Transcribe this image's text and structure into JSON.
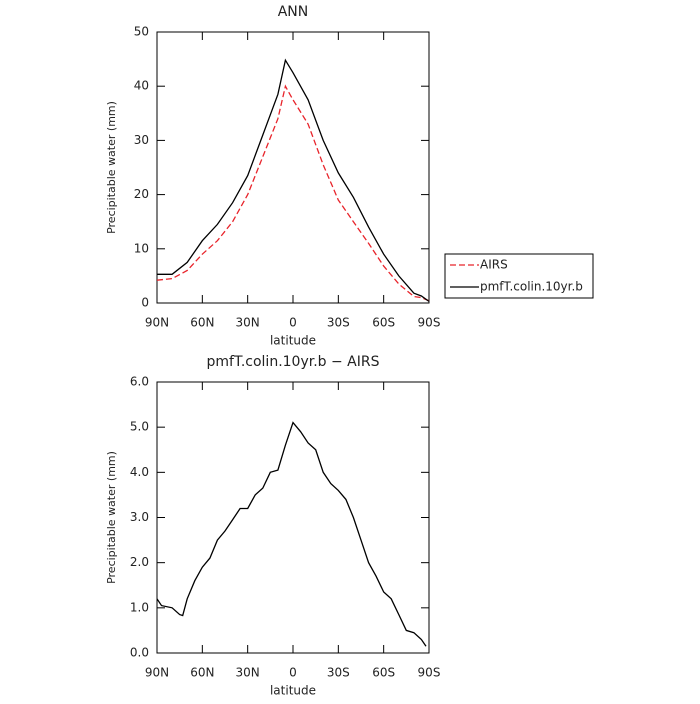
{
  "chart_data": [
    {
      "type": "line",
      "title": "ANN",
      "x_label": "latitude",
      "y_label": "Precipitable water (mm)",
      "x": [
        90,
        80,
        70,
        60,
        50,
        40,
        30,
        20,
        10,
        5,
        0,
        -10,
        -20,
        -30,
        -40,
        -50,
        -60,
        -70,
        -80,
        -85,
        -90
      ],
      "series": [
        {
          "name": "AIRS",
          "color": "#e8242b",
          "dash": true,
          "values": [
            4.2,
            4.5,
            6,
            9,
            11.5,
            15,
            20,
            27,
            34,
            40,
            37.5,
            33,
            25.5,
            19,
            15,
            11,
            6.8,
            3.5,
            1.2,
            1,
            0.4
          ]
        },
        {
          "name": "pmfT.colin.10yr.b",
          "color": "#000000",
          "dash": false,
          "values": [
            5.3,
            5.3,
            7.5,
            11.5,
            14.5,
            18.5,
            23.5,
            31,
            38.5,
            44.8,
            42.5,
            37.5,
            30,
            24,
            19.5,
            14,
            9,
            5,
            1.8,
            1.3,
            0.3
          ]
        }
      ],
      "xlim": [
        90,
        -90
      ],
      "xticks": [
        {
          "value": 90,
          "label": "90N"
        },
        {
          "value": 60,
          "label": "60N"
        },
        {
          "value": 30,
          "label": "30N"
        },
        0,
        {
          "value": -30,
          "label": "30S"
        },
        {
          "value": -60,
          "label": "60S"
        },
        {
          "value": -90,
          "label": "90S"
        }
      ],
      "ylim": [
        0,
        50
      ],
      "yticks": [
        0,
        10,
        20,
        30,
        40,
        50
      ],
      "legend": "right"
    },
    {
      "type": "line",
      "title": "pmfT.colin.10yr.b  −  AIRS",
      "x_label": "latitude",
      "y_label": "Precipitable water (mm)",
      "x": [
        90,
        87,
        80,
        75,
        73,
        70,
        65,
        60,
        55,
        50,
        45,
        40,
        35,
        30,
        25,
        20,
        15,
        10,
        5,
        0,
        -5,
        -10,
        -15,
        -20,
        -25,
        -30,
        -35,
        -40,
        -45,
        -50,
        -55,
        -60,
        -65,
        -70,
        -75,
        -80,
        -85,
        -88
      ],
      "series": [
        {
          "color": "#000000",
          "dash": false,
          "values": [
            1.2,
            1.05,
            1.0,
            0.85,
            0.83,
            1.2,
            1.6,
            1.9,
            2.1,
            2.5,
            2.7,
            2.95,
            3.2,
            3.2,
            3.5,
            3.65,
            4.0,
            4.05,
            4.6,
            5.1,
            4.9,
            4.65,
            4.5,
            4.0,
            3.75,
            3.6,
            3.4,
            3.0,
            2.5,
            2.0,
            1.7,
            1.35,
            1.2,
            0.85,
            0.5,
            0.45,
            0.3,
            0.15
          ]
        }
      ],
      "xlim": [
        90,
        -90
      ],
      "xticks": [
        {
          "value": 90,
          "label": "90N"
        },
        {
          "value": 60,
          "label": "60N"
        },
        {
          "value": 30,
          "label": "30N"
        },
        0,
        {
          "value": -30,
          "label": "30S"
        },
        {
          "value": -60,
          "label": "60S"
        },
        {
          "value": -90,
          "label": "90S"
        }
      ],
      "ylim": [
        0,
        6
      ],
      "yticks": [
        {
          "value": 0,
          "label": "0.0"
        },
        {
          "value": 1,
          "label": "1.0"
        },
        {
          "value": 2,
          "label": "2.0"
        },
        {
          "value": 3,
          "label": "3.0"
        },
        {
          "value": 4,
          "label": "4.0"
        },
        {
          "value": 5,
          "label": "5.0"
        },
        {
          "value": 6,
          "label": "6.0"
        }
      ]
    }
  ]
}
